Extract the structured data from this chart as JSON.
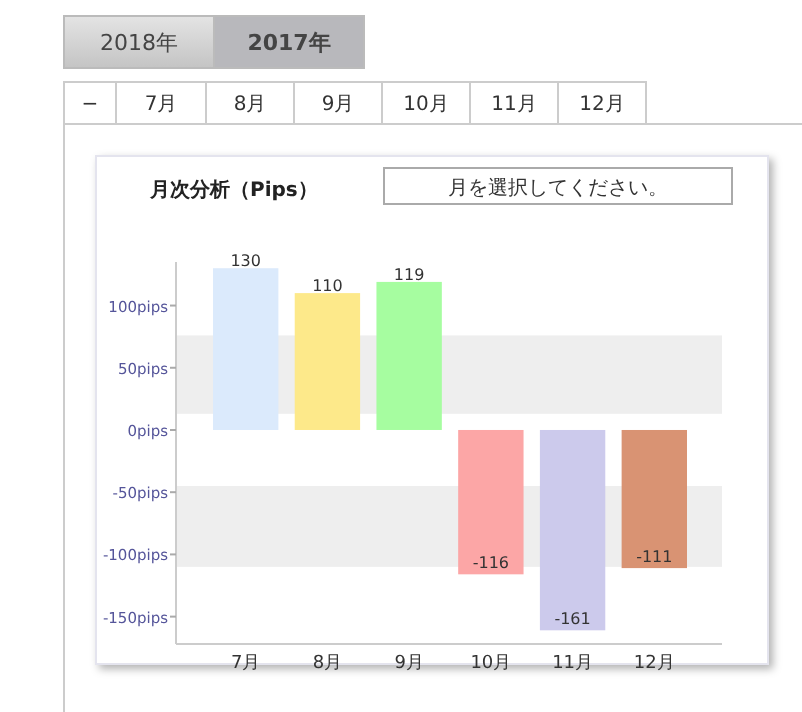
{
  "chart_data": {
    "type": "bar",
    "title": "月次分析（Pips）",
    "categories": [
      "7月",
      "8月",
      "9月",
      "10月",
      "11月",
      "12月"
    ],
    "values": [
      130,
      110,
      119,
      -116,
      -161,
      -111
    ],
    "colors": [
      "#dbeafc",
      "#fde98a",
      "#a6fda0",
      "#fca6a6",
      "#cccaec",
      "#d99373"
    ],
    "data_labels": true,
    "ylim": [
      -172,
      135
    ],
    "yticks": [
      {
        "value": -150,
        "label": "-150pips"
      },
      {
        "value": -100,
        "label": "-100pips"
      },
      {
        "value": -50,
        "label": "-50pips"
      },
      {
        "value": 0,
        "label": "0pips"
      },
      {
        "value": 50,
        "label": "50pips"
      },
      {
        "value": 100,
        "label": "100pips"
      }
    ],
    "bands": [
      {
        "axis": "y",
        "from": 13,
        "to": 76,
        "color": "#eeeeee"
      },
      {
        "axis": "y",
        "from": -110,
        "to": -45,
        "color": "#eeeeee"
      }
    ],
    "annotations": [
      "2018年",
      "2017年",
      "−",
      "7月",
      "8月",
      "9月",
      "10月",
      "11月",
      "12月",
      "月を選択してください。"
    ]
  }
}
